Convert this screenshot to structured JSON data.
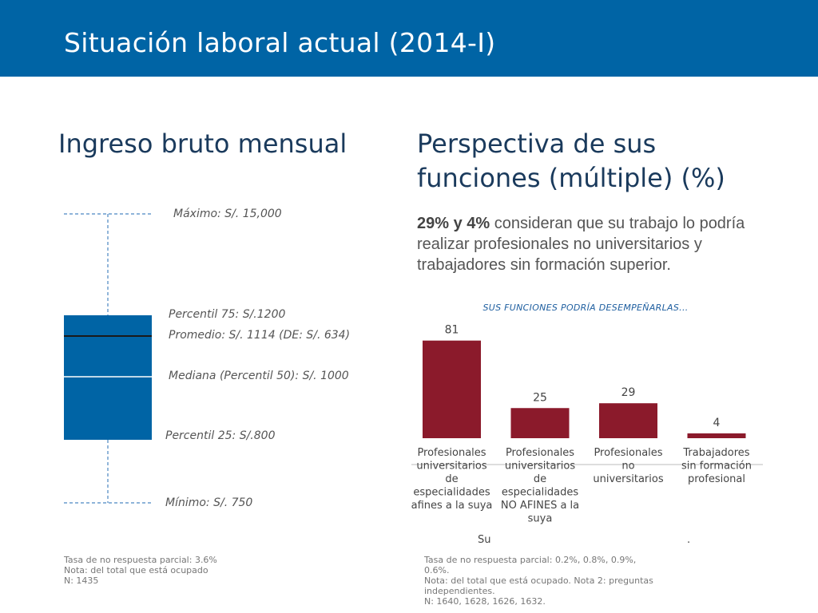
{
  "header": {
    "title": "Situación laboral actual (2014-I)"
  },
  "left": {
    "title": "Ingreso bruto mensual",
    "boxplot": {
      "labels": {
        "max": "Máximo:  S/. 15,000",
        "p75": "Percentil 75:  S/.1200",
        "mean": "Promedio:  S/. 1114 (DE: S/. 634)",
        "median": "Mediana (Percentil 50):  S/. 1000",
        "p25": "Percentil 25:  S/.800",
        "min": "Mínimo:  S/. 750"
      },
      "colors": {
        "box": "#0064a5",
        "whisker": "#4a86c2",
        "mean_line": "#1a1a1a"
      }
    },
    "note": [
      "Tasa de no respuesta parcial: 3.6%",
      "Nota: del total que está ocupado",
      "N: 1435"
    ]
  },
  "right": {
    "title_line1": "Perspectiva de sus",
    "title_line2": "funciones (múltiple) (%)",
    "summary": {
      "highlight": "29% y 4%",
      "text": " consideran que su trabajo lo podría realizar profesionales no universitarios y trabajadores sin formación superior."
    },
    "note": [
      "Tasa de no respuesta parcial: 0.2%, 0.8%, 0.9%, 0.6%.",
      "Nota: del total que está ocupado. Nota 2: preguntas",
      "independientes.",
      "N: 1640, 1628, 1626, 1632."
    ],
    "stray_left": "Su",
    "stray_right": "."
  },
  "chart_data": {
    "type": "bar",
    "title": "SUS FUNCIONES PODRÍA DESEMPEÑARLAS...",
    "categories": [
      [
        "Profesionales",
        "universitarios",
        "de",
        "especialidades",
        "afines a la suya"
      ],
      [
        "Profesionales",
        "universitarios",
        "de",
        "especialidades",
        "NO AFINES a la",
        "suya"
      ],
      [
        "Profesionales",
        "no",
        "universitarios"
      ],
      [
        "Trabajadores",
        "sin formación",
        "profesional"
      ]
    ],
    "values": [
      81,
      25,
      29,
      4
    ],
    "ylim": [
      0,
      100
    ],
    "bar_color": "#8b1a2b",
    "grid": false
  }
}
